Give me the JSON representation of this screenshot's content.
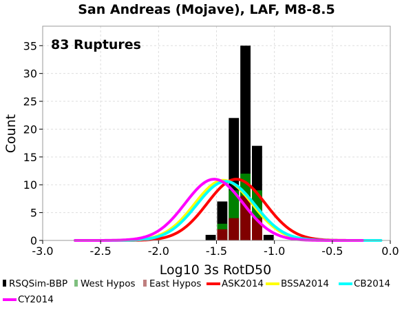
{
  "chart_data": {
    "type": "bar",
    "title": "San Andreas (Mojave), LAF, M8-8.5",
    "xlabel": "Log10 3s RotD50",
    "ylabel": "Count",
    "annotation": "83 Ruptures",
    "xlim": [
      -3.0,
      0.0
    ],
    "ylim": [
      0,
      38.5
    ],
    "xticks": [
      -3.0,
      -2.5,
      -2.0,
      -1.5,
      -1.0,
      -0.5,
      0.0
    ],
    "xtick_labels": [
      "-3.0",
      "-2.5",
      "-2.0",
      "-1.5",
      "-1.0",
      "-0.5",
      "0.0"
    ],
    "yticks": [
      0,
      5,
      10,
      15,
      20,
      25,
      30,
      35
    ],
    "ytick_labels": [
      "0",
      "5",
      "10",
      "15",
      "20",
      "25",
      "30",
      "35"
    ],
    "grid": true,
    "legend_position": "bottom",
    "bin_width": 0.1,
    "bins": [
      {
        "center": -1.55,
        "total": 1,
        "west": 0,
        "east": 0
      },
      {
        "center": -1.45,
        "total": 7,
        "west": 3,
        "east": 2
      },
      {
        "center": -1.35,
        "total": 22,
        "west": 9,
        "east": 4
      },
      {
        "center": -1.25,
        "total": 35,
        "west": 12,
        "east": 8
      },
      {
        "center": -1.15,
        "total": 17,
        "west": 9,
        "east": 4
      },
      {
        "center": -1.05,
        "total": 1,
        "west": 0,
        "east": 0
      }
    ],
    "curves": [
      {
        "name": "ASK2014",
        "mean": -1.33,
        "peak": 11.0,
        "sigma": 0.25,
        "xmin": -2.72,
        "xmax": -0.24
      },
      {
        "name": "BSSA2014",
        "mean": -1.44,
        "peak": 10.8,
        "sigma": 0.25,
        "xmin": -2.72,
        "xmax": -0.24
      },
      {
        "name": "CB2014",
        "mean": -1.42,
        "peak": 10.6,
        "sigma": 0.25,
        "xmin": -2.72,
        "xmax": -0.08
      },
      {
        "name": "CY2014",
        "mean": -1.52,
        "peak": 11.0,
        "sigma": 0.25,
        "xmin": -2.72,
        "xmax": -0.24
      }
    ],
    "legend": [
      {
        "label": "RSQSim-BBP",
        "kind": "bar",
        "color": "#000000"
      },
      {
        "label": "West Hypos",
        "kind": "bar",
        "color": "#7fbf7f"
      },
      {
        "label": "East Hypos",
        "kind": "bar",
        "color": "#bf7f7f"
      },
      {
        "label": "ASK2014",
        "kind": "line",
        "color": "#ff0000"
      },
      {
        "label": "BSSA2014",
        "kind": "line",
        "color": "#ffff00"
      },
      {
        "label": "CB2014",
        "kind": "line",
        "color": "#00ffff"
      },
      {
        "label": "CY2014",
        "kind": "line",
        "color": "#ff00ff"
      }
    ],
    "colors": {
      "total": "#000000",
      "west_overlay": "#008000",
      "east_overlay": "#800000"
    }
  }
}
